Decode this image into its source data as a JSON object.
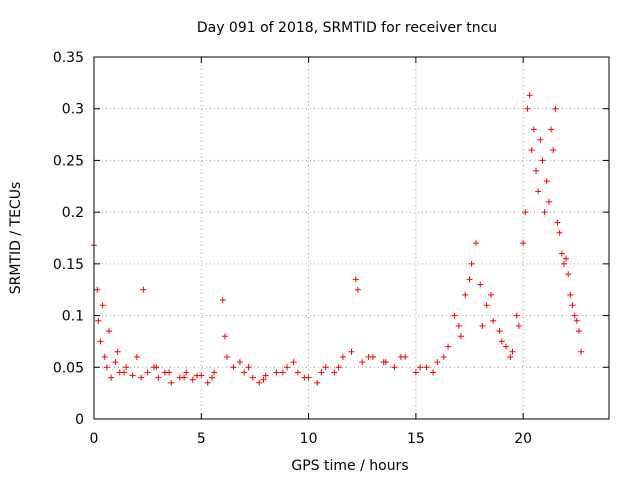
{
  "chart_data": {
    "type": "scatter",
    "title": "Day 091 of 2018, SRMTID for receiver tncu",
    "xlabel": "GPS time / hours",
    "ylabel": "SRMTID / TECUs",
    "xlim": [
      0,
      24
    ],
    "ylim": [
      0,
      0.35
    ],
    "xticks": [
      0,
      5,
      10,
      15,
      20
    ],
    "xtick_labels": [
      "0",
      "5",
      "10",
      "15",
      "20"
    ],
    "yticks": [
      0,
      0.05,
      0.1,
      0.15,
      0.2,
      0.25,
      0.3,
      0.35
    ],
    "ytick_labels": [
      "0",
      "0.05",
      "0.1",
      "0.15",
      "0.2",
      "0.25",
      "0.3",
      "0.35"
    ],
    "grid": true,
    "marker": "+",
    "color": "#ff0000",
    "series": [
      {
        "name": "SRMTID",
        "x": [
          0.0,
          0.15,
          0.2,
          0.3,
          0.5,
          0.6,
          0.8,
          1.0,
          1.2,
          1.5,
          1.8,
          2.0,
          2.3,
          2.5,
          2.8,
          3.0,
          3.3,
          3.6,
          4.0,
          4.3,
          4.6,
          5.0,
          5.3,
          5.6,
          6.0,
          6.2,
          6.5,
          7.0,
          7.4,
          7.7,
          8.0,
          8.5,
          9.0,
          9.5,
          10.0,
          10.4,
          10.8,
          11.2,
          11.6,
          12.0,
          12.2,
          12.5,
          13.0,
          13.5,
          14.0,
          14.5,
          15.0,
          15.5,
          16.0,
          16.5,
          17.0,
          17.3,
          17.6,
          17.8,
          18.0,
          18.3,
          18.6,
          18.9,
          19.2,
          19.5,
          19.8,
          20.0,
          20.2,
          20.3,
          20.5,
          20.7,
          20.9,
          21.1,
          21.3,
          21.5,
          21.7,
          21.9,
          22.1,
          22.3,
          22.5,
          22.7,
          0.4,
          0.7,
          1.1,
          1.4,
          2.2,
          2.9,
          3.5,
          4.2,
          4.8,
          5.5,
          6.1,
          6.8,
          7.2,
          7.9,
          8.8,
          9.3,
          9.8,
          10.6,
          11.4,
          12.3,
          12.8,
          13.6,
          14.3,
          15.2,
          15.8,
          16.3,
          16.8,
          17.1,
          17.5,
          18.1,
          18.5,
          19.0,
          19.4,
          19.7,
          20.1,
          20.4,
          20.6,
          20.8,
          21.0,
          21.2,
          21.4,
          21.6,
          21.8,
          22.0,
          22.2,
          22.4,
          22.6
        ],
        "y": [
          0.168,
          0.125,
          0.095,
          0.075,
          0.06,
          0.05,
          0.04,
          0.055,
          0.045,
          0.05,
          0.042,
          0.06,
          0.125,
          0.045,
          0.05,
          0.04,
          0.045,
          0.035,
          0.04,
          0.045,
          0.038,
          0.042,
          0.035,
          0.045,
          0.115,
          0.06,
          0.05,
          0.045,
          0.04,
          0.035,
          0.042,
          0.045,
          0.05,
          0.045,
          0.04,
          0.035,
          0.05,
          0.045,
          0.06,
          0.065,
          0.135,
          0.055,
          0.06,
          0.055,
          0.05,
          0.06,
          0.045,
          0.05,
          0.055,
          0.07,
          0.09,
          0.12,
          0.15,
          0.17,
          0.13,
          0.11,
          0.095,
          0.085,
          0.07,
          0.065,
          0.09,
          0.17,
          0.3,
          0.313,
          0.28,
          0.22,
          0.25,
          0.23,
          0.28,
          0.3,
          0.18,
          0.15,
          0.14,
          0.11,
          0.095,
          0.065,
          0.11,
          0.085,
          0.065,
          0.045,
          0.04,
          0.05,
          0.045,
          0.04,
          0.042,
          0.04,
          0.08,
          0.055,
          0.05,
          0.038,
          0.045,
          0.055,
          0.04,
          0.045,
          0.05,
          0.125,
          0.06,
          0.055,
          0.06,
          0.05,
          0.045,
          0.06,
          0.1,
          0.08,
          0.135,
          0.09,
          0.12,
          0.075,
          0.06,
          0.1,
          0.2,
          0.26,
          0.24,
          0.27,
          0.2,
          0.21,
          0.26,
          0.19,
          0.16,
          0.155,
          0.12,
          0.1,
          0.085
        ]
      }
    ]
  }
}
